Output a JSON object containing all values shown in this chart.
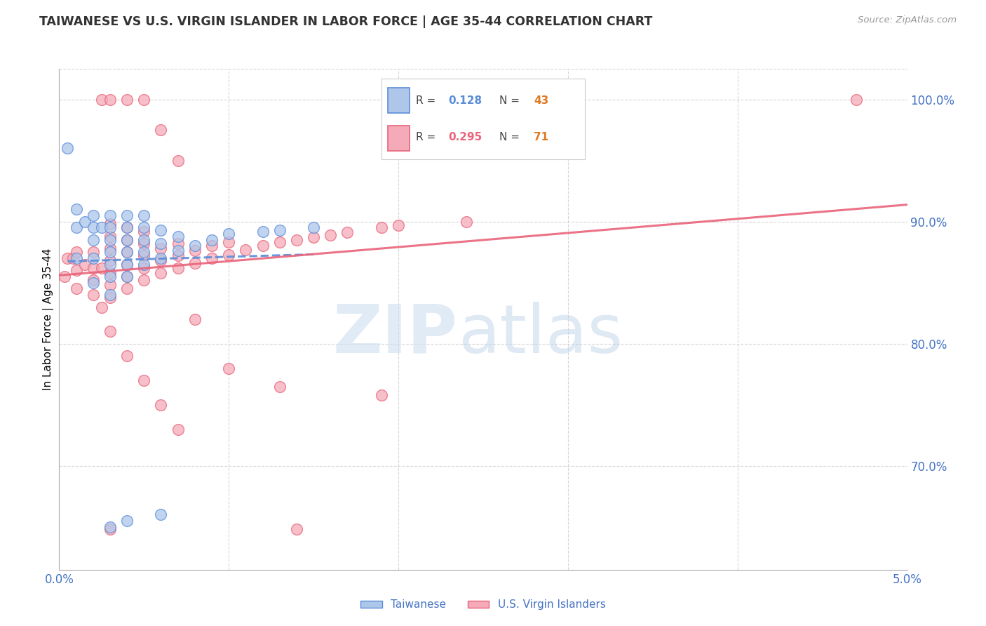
{
  "title": "TAIWANESE VS U.S. VIRGIN ISLANDER IN LABOR FORCE | AGE 35-44 CORRELATION CHART",
  "source": "Source: ZipAtlas.com",
  "ylabel": "In Labor Force | Age 35-44",
  "xlim": [
    0.0,
    0.05
  ],
  "ylim": [
    0.615,
    1.025
  ],
  "yticks": [
    0.7,
    0.8,
    0.9,
    1.0
  ],
  "ytick_labels": [
    "70.0%",
    "80.0%",
    "90.0%",
    "100.0%"
  ],
  "legend_R1": "0.128",
  "legend_N1": "43",
  "legend_R2": "0.295",
  "legend_N2": "71",
  "color_taiwanese": "#adc6ea",
  "color_usvi": "#f4aab8",
  "color_line_taiwanese": "#5b8dd9",
  "color_line_usvi": "#e8647a",
  "color_axis_labels": "#4472c4",
  "title_color": "#333333",
  "grid_color": "#cccccc",
  "taiwanese_x": [
    0.0005,
    0.001,
    0.001,
    0.001,
    0.0015,
    0.002,
    0.002,
    0.002,
    0.002,
    0.002,
    0.0025,
    0.003,
    0.003,
    0.003,
    0.003,
    0.003,
    0.003,
    0.003,
    0.004,
    0.004,
    0.004,
    0.004,
    0.004,
    0.004,
    0.005,
    0.005,
    0.005,
    0.005,
    0.005,
    0.006,
    0.006,
    0.006,
    0.007,
    0.007,
    0.008,
    0.009,
    0.01,
    0.012,
    0.013,
    0.015,
    0.003,
    0.004,
    0.006
  ],
  "taiwanese_y": [
    0.96,
    0.87,
    0.895,
    0.91,
    0.9,
    0.85,
    0.87,
    0.885,
    0.895,
    0.905,
    0.895,
    0.84,
    0.855,
    0.865,
    0.875,
    0.885,
    0.895,
    0.905,
    0.855,
    0.865,
    0.875,
    0.885,
    0.895,
    0.905,
    0.865,
    0.875,
    0.885,
    0.895,
    0.905,
    0.87,
    0.882,
    0.893,
    0.876,
    0.888,
    0.88,
    0.885,
    0.89,
    0.892,
    0.893,
    0.895,
    0.65,
    0.655,
    0.66
  ],
  "usvi_x": [
    0.0003,
    0.0005,
    0.0008,
    0.001,
    0.001,
    0.001,
    0.0015,
    0.002,
    0.002,
    0.002,
    0.002,
    0.0025,
    0.003,
    0.003,
    0.003,
    0.003,
    0.003,
    0.003,
    0.003,
    0.004,
    0.004,
    0.004,
    0.004,
    0.004,
    0.004,
    0.005,
    0.005,
    0.005,
    0.005,
    0.005,
    0.006,
    0.006,
    0.006,
    0.007,
    0.007,
    0.007,
    0.008,
    0.008,
    0.009,
    0.009,
    0.01,
    0.01,
    0.011,
    0.012,
    0.013,
    0.014,
    0.015,
    0.016,
    0.017,
    0.019,
    0.02,
    0.024,
    0.0025,
    0.003,
    0.004,
    0.005,
    0.006,
    0.007,
    0.008,
    0.01,
    0.013,
    0.019,
    0.047,
    0.0025,
    0.003,
    0.004,
    0.005,
    0.006,
    0.007,
    0.003,
    0.014
  ],
  "usvi_y": [
    0.855,
    0.87,
    0.87,
    0.845,
    0.86,
    0.875,
    0.865,
    0.84,
    0.852,
    0.862,
    0.875,
    0.862,
    0.838,
    0.848,
    0.858,
    0.868,
    0.878,
    0.888,
    0.898,
    0.845,
    0.855,
    0.865,
    0.875,
    0.885,
    0.895,
    0.852,
    0.862,
    0.872,
    0.882,
    0.892,
    0.858,
    0.868,
    0.878,
    0.862,
    0.872,
    0.882,
    0.866,
    0.876,
    0.87,
    0.88,
    0.873,
    0.883,
    0.877,
    0.88,
    0.883,
    0.885,
    0.887,
    0.889,
    0.891,
    0.895,
    0.897,
    0.9,
    1.0,
    1.0,
    1.0,
    1.0,
    0.975,
    0.95,
    0.82,
    0.78,
    0.765,
    0.758,
    1.0,
    0.83,
    0.81,
    0.79,
    0.77,
    0.75,
    0.73,
    0.648,
    0.648
  ]
}
